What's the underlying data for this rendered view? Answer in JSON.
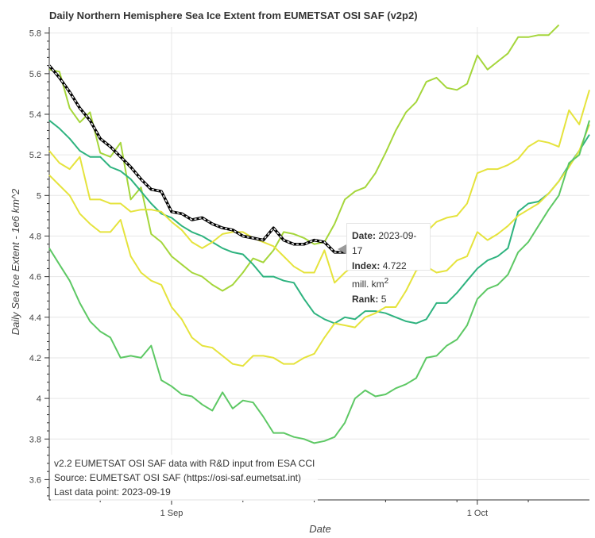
{
  "chart_data": {
    "type": "line",
    "title": "Daily Northern Hemisphere Sea Ice Extent from EUMETSAT OSI SAF (v2p2)",
    "xlabel": "Date",
    "ylabel": "Daily Sea Ice Extent - 1e6 km^2",
    "x_ticks": [
      "1 Sep",
      "1 Oct"
    ],
    "y_ticks": [
      "3.6",
      "3.8",
      "4",
      "4.2",
      "4.4",
      "4.6",
      "4.8",
      "5",
      "5.2",
      "5.4",
      "5.6",
      "5.8"
    ],
    "xlim": [
      "2023-08-20",
      "2023-10-12"
    ],
    "ylim": [
      3.5,
      5.83
    ],
    "grid": true,
    "series": [
      {
        "color": "#a5d63b",
        "x": [
          "2023-08-20",
          "2023-08-21",
          "2023-08-22",
          "2023-08-23",
          "2023-08-24",
          "2023-08-25",
          "2023-08-26",
          "2023-08-27",
          "2023-08-28",
          "2023-08-29",
          "2023-08-30",
          "2023-08-31",
          "2023-09-01",
          "2023-09-02",
          "2023-09-03",
          "2023-09-04",
          "2023-09-05",
          "2023-09-06",
          "2023-09-07",
          "2023-09-08",
          "2023-09-09",
          "2023-09-10",
          "2023-09-11",
          "2023-09-12",
          "2023-09-13",
          "2023-09-14",
          "2023-09-15",
          "2023-09-16",
          "2023-09-17",
          "2023-09-18",
          "2023-09-19",
          "2023-09-20",
          "2023-09-21",
          "2023-09-22",
          "2023-09-23",
          "2023-09-24",
          "2023-09-25",
          "2023-09-26",
          "2023-09-27",
          "2023-09-28",
          "2023-09-29",
          "2023-09-30",
          "2023-10-01",
          "2023-10-02",
          "2023-10-03",
          "2023-10-04",
          "2023-10-05",
          "2023-10-06",
          "2023-10-07",
          "2023-10-08",
          "2023-10-09"
        ],
        "values": [
          5.62,
          5.61,
          5.43,
          5.36,
          5.41,
          5.21,
          5.19,
          5.26,
          4.98,
          5.04,
          4.81,
          4.77,
          4.7,
          4.66,
          4.62,
          4.6,
          4.56,
          4.53,
          4.56,
          4.62,
          4.69,
          4.67,
          4.73,
          4.82,
          4.81,
          4.79,
          4.76,
          4.77,
          4.86,
          4.98,
          5.02,
          5.04,
          5.11,
          5.21,
          5.32,
          5.41,
          5.46,
          5.56,
          5.58,
          5.53,
          5.52,
          5.55,
          5.69,
          5.62,
          5.66,
          5.7,
          5.78,
          5.78,
          5.79,
          5.79,
          5.84
        ]
      },
      {
        "color": "#2eb37f",
        "x": [
          "2023-08-20",
          "2023-08-21",
          "2023-08-22",
          "2023-08-23",
          "2023-08-24",
          "2023-08-25",
          "2023-08-26",
          "2023-08-27",
          "2023-08-28",
          "2023-08-29",
          "2023-08-30",
          "2023-08-31",
          "2023-09-01",
          "2023-09-02",
          "2023-09-03",
          "2023-09-04",
          "2023-09-05",
          "2023-09-06",
          "2023-09-07",
          "2023-09-08",
          "2023-09-09",
          "2023-09-10",
          "2023-09-11",
          "2023-09-12",
          "2023-09-13",
          "2023-09-14",
          "2023-09-15",
          "2023-09-16",
          "2023-09-17",
          "2023-09-18",
          "2023-09-19",
          "2023-09-20",
          "2023-09-21",
          "2023-09-22",
          "2023-09-23",
          "2023-09-24",
          "2023-09-25",
          "2023-09-26",
          "2023-09-27",
          "2023-09-28",
          "2023-09-29",
          "2023-09-30",
          "2023-10-01",
          "2023-10-02",
          "2023-10-03",
          "2023-10-04",
          "2023-10-05",
          "2023-10-06",
          "2023-10-07",
          "2023-10-08",
          "2023-10-09",
          "2023-10-10",
          "2023-10-11",
          "2023-10-12"
        ],
        "values": [
          5.37,
          5.33,
          5.28,
          5.22,
          5.19,
          5.19,
          5.14,
          5.12,
          5.08,
          5.02,
          4.96,
          4.91,
          4.89,
          4.85,
          4.82,
          4.8,
          4.77,
          4.74,
          4.72,
          4.71,
          4.66,
          4.6,
          4.6,
          4.58,
          4.57,
          4.49,
          4.42,
          4.39,
          4.37,
          4.4,
          4.39,
          4.43,
          4.43,
          4.42,
          4.4,
          4.38,
          4.37,
          4.39,
          4.47,
          4.47,
          4.52,
          4.58,
          4.64,
          4.68,
          4.7,
          4.74,
          4.92,
          4.96,
          4.97,
          5.01,
          5.07,
          5.15,
          5.22,
          5.3
        ]
      },
      {
        "color": "#e5e33c",
        "x": [
          "2023-08-20",
          "2023-08-21",
          "2023-08-22",
          "2023-08-23",
          "2023-08-24",
          "2023-08-25",
          "2023-08-26",
          "2023-08-27",
          "2023-08-28",
          "2023-08-29",
          "2023-08-30",
          "2023-08-31",
          "2023-09-01",
          "2023-09-02",
          "2023-09-03",
          "2023-09-04",
          "2023-09-05",
          "2023-09-06",
          "2023-09-07",
          "2023-09-08",
          "2023-09-09",
          "2023-09-10",
          "2023-09-11",
          "2023-09-12",
          "2023-09-13",
          "2023-09-14",
          "2023-09-15",
          "2023-09-16",
          "2023-09-17",
          "2023-09-18",
          "2023-09-19",
          "2023-09-20",
          "2023-09-21",
          "2023-09-22",
          "2023-09-23",
          "2023-09-24",
          "2023-09-25",
          "2023-09-26",
          "2023-09-27",
          "2023-09-28",
          "2023-09-29",
          "2023-09-30",
          "2023-10-01",
          "2023-10-02",
          "2023-10-03",
          "2023-10-04",
          "2023-10-05",
          "2023-10-06",
          "2023-10-07",
          "2023-10-08",
          "2023-10-09",
          "2023-10-10",
          "2023-10-11",
          "2023-10-12"
        ],
        "values": [
          5.22,
          5.16,
          5.13,
          5.19,
          4.98,
          4.98,
          4.96,
          4.96,
          4.92,
          4.93,
          4.93,
          4.92,
          4.87,
          4.83,
          4.77,
          4.74,
          4.77,
          4.81,
          4.82,
          4.82,
          4.79,
          4.77,
          4.75,
          4.7,
          4.65,
          4.62,
          4.62,
          4.73,
          4.57,
          4.62,
          4.66,
          4.71,
          4.77,
          4.8,
          4.81,
          4.74,
          4.8,
          4.82,
          4.87,
          4.89,
          4.9,
          4.96,
          5.11,
          5.13,
          5.13,
          5.15,
          5.18,
          5.24,
          5.27,
          5.26,
          5.24,
          5.42,
          5.35,
          5.52
        ]
      },
      {
        "color": "#e5e33c",
        "x": [
          "2023-08-20",
          "2023-08-21",
          "2023-08-22",
          "2023-08-23",
          "2023-08-24",
          "2023-08-25",
          "2023-08-26",
          "2023-08-27",
          "2023-08-28",
          "2023-08-29",
          "2023-08-30",
          "2023-08-31",
          "2023-09-01",
          "2023-09-02",
          "2023-09-03",
          "2023-09-04",
          "2023-09-05",
          "2023-09-06",
          "2023-09-07",
          "2023-09-08",
          "2023-09-09",
          "2023-09-10",
          "2023-09-11",
          "2023-09-12",
          "2023-09-13",
          "2023-09-14",
          "2023-09-15",
          "2023-09-16",
          "2023-09-17",
          "2023-09-18",
          "2023-09-19",
          "2023-09-20",
          "2023-09-21",
          "2023-09-22",
          "2023-09-23",
          "2023-09-24",
          "2023-09-25",
          "2023-09-26",
          "2023-09-27",
          "2023-09-28",
          "2023-09-29",
          "2023-09-30",
          "2023-10-01",
          "2023-10-02",
          "2023-10-03",
          "2023-10-04",
          "2023-10-05",
          "2023-10-06",
          "2023-10-07",
          "2023-10-08",
          "2023-10-09",
          "2023-10-10",
          "2023-10-11",
          "2023-10-12"
        ],
        "values": [
          5.1,
          5.05,
          5.0,
          4.91,
          4.86,
          4.82,
          4.82,
          4.88,
          4.7,
          4.62,
          4.58,
          4.56,
          4.45,
          4.39,
          4.3,
          4.26,
          4.25,
          4.21,
          4.17,
          4.16,
          4.21,
          4.21,
          4.2,
          4.17,
          4.17,
          4.2,
          4.22,
          4.3,
          4.37,
          4.36,
          4.35,
          4.4,
          4.42,
          4.45,
          4.45,
          4.53,
          4.63,
          4.65,
          4.62,
          4.63,
          4.68,
          4.7,
          4.82,
          4.78,
          4.81,
          4.85,
          4.9,
          4.93,
          4.96,
          5.01,
          5.07,
          5.14,
          5.22,
          5.35
        ]
      },
      {
        "color": "#5dc864",
        "x": [
          "2023-08-20",
          "2023-08-21",
          "2023-08-22",
          "2023-08-23",
          "2023-08-24",
          "2023-08-25",
          "2023-08-26",
          "2023-08-27",
          "2023-08-28",
          "2023-08-29",
          "2023-08-30",
          "2023-08-31",
          "2023-09-01",
          "2023-09-02",
          "2023-09-03",
          "2023-09-04",
          "2023-09-05",
          "2023-09-06",
          "2023-09-07",
          "2023-09-08",
          "2023-09-09",
          "2023-09-10",
          "2023-09-11",
          "2023-09-12",
          "2023-09-13",
          "2023-09-14",
          "2023-09-15",
          "2023-09-16",
          "2023-09-17",
          "2023-09-18",
          "2023-09-19",
          "2023-09-20",
          "2023-09-21",
          "2023-09-22",
          "2023-09-23",
          "2023-09-24",
          "2023-09-25",
          "2023-09-26",
          "2023-09-27",
          "2023-09-28",
          "2023-09-29",
          "2023-09-30",
          "2023-10-01",
          "2023-10-02",
          "2023-10-03",
          "2023-10-04",
          "2023-10-05",
          "2023-10-06",
          "2023-10-07",
          "2023-10-08",
          "2023-10-09",
          "2023-10-10",
          "2023-10-11",
          "2023-10-12"
        ],
        "values": [
          4.74,
          4.66,
          4.58,
          4.47,
          4.38,
          4.33,
          4.3,
          4.2,
          4.21,
          4.2,
          4.26,
          4.09,
          4.06,
          4.02,
          4.01,
          3.97,
          3.94,
          4.03,
          3.95,
          3.99,
          3.98,
          3.91,
          3.83,
          3.83,
          3.81,
          3.8,
          3.78,
          3.79,
          3.81,
          3.88,
          4.0,
          4.04,
          4.01,
          4.02,
          4.05,
          4.07,
          4.1,
          4.2,
          4.21,
          4.26,
          4.29,
          4.36,
          4.49,
          4.54,
          4.56,
          4.61,
          4.72,
          4.77,
          4.85,
          4.93,
          5.0,
          5.16,
          5.2,
          5.37
        ]
      },
      {
        "color": "#000000",
        "dashed_overlay": "#ffffff",
        "x": [
          "2023-08-20",
          "2023-08-21",
          "2023-08-22",
          "2023-08-23",
          "2023-08-24",
          "2023-08-25",
          "2023-08-26",
          "2023-08-27",
          "2023-08-28",
          "2023-08-29",
          "2023-08-30",
          "2023-08-31",
          "2023-09-01",
          "2023-09-02",
          "2023-09-03",
          "2023-09-04",
          "2023-09-05",
          "2023-09-06",
          "2023-09-07",
          "2023-09-08",
          "2023-09-09",
          "2023-09-10",
          "2023-09-11",
          "2023-09-12",
          "2023-09-13",
          "2023-09-14",
          "2023-09-15",
          "2023-09-16",
          "2023-09-17",
          "2023-09-18",
          "2023-09-19"
        ],
        "values": [
          5.64,
          5.58,
          5.51,
          5.43,
          5.37,
          5.28,
          5.24,
          5.19,
          5.14,
          5.08,
          5.03,
          5.02,
          4.92,
          4.91,
          4.88,
          4.89,
          4.86,
          4.84,
          4.83,
          4.8,
          4.79,
          4.78,
          4.84,
          4.78,
          4.76,
          4.76,
          4.78,
          4.77,
          4.72,
          4.72,
          4.72
        ]
      }
    ],
    "annotations": [
      "v2.2 EUMETSAT OSI SAF data with R&D input from ESA CCI",
      "Source: EUMETSAT OSI SAF (https://osi-saf.eumetsat.int)",
      "Last data point: 2023-09-19"
    ],
    "tooltip": {
      "date_label": "Date:",
      "date_value": "2023-09-17",
      "index_label": "Index:",
      "index_value": "4.722 mill. km",
      "index_sup": "2",
      "rank_label": "Rank:",
      "rank_value": "5"
    }
  }
}
